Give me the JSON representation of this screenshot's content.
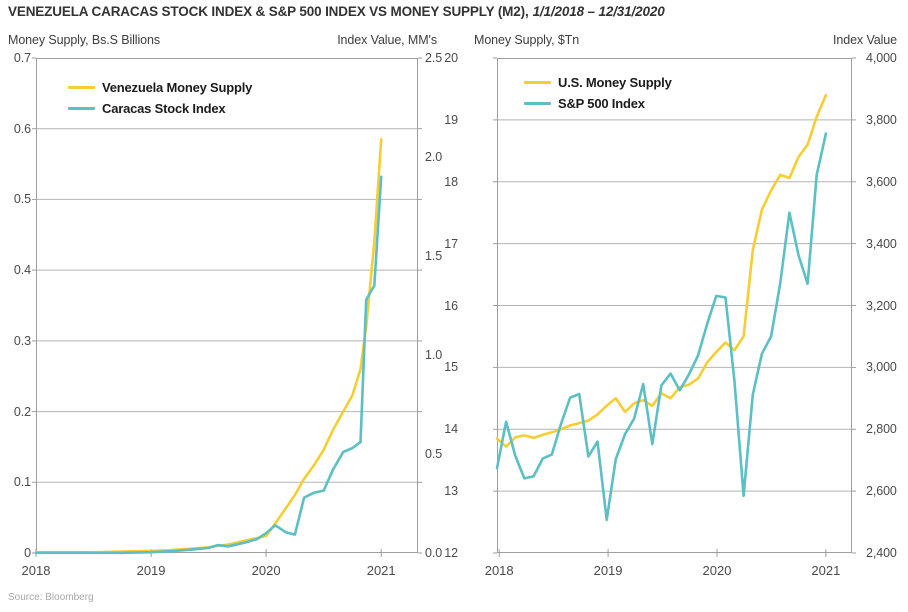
{
  "title": {
    "main": "VENEZUELA CARACAS STOCK INDEX & S&P 500 INDEX VS MONEY SUPPLY (M2),",
    "date_range": "1/1/2018 – 12/31/2020"
  },
  "source": "Source: Bloomberg",
  "colors": {
    "money_supply_yellow": "#F5CE33",
    "index_teal": "#5CBFC4",
    "gridline": "#b4b4b4",
    "frame": "#9e9e9e"
  },
  "chart_data": [
    {
      "type": "line",
      "title": "Venezuela Money Supply vs Caracas Stock Index",
      "left_axis": {
        "title": "Money Supply, Bs.S Billions",
        "min": 0,
        "max": 0.7,
        "tick_labels": [
          "0.7",
          "0.6",
          "0.5",
          "0.4",
          "0.3",
          "0.2",
          "0.1",
          "0"
        ],
        "tick_values": [
          0.7,
          0.6,
          0.5,
          0.4,
          0.3,
          0.2,
          0.1,
          0
        ]
      },
      "right_axis": {
        "title": "Index Value, MM's",
        "min": 0,
        "max": 2.5,
        "tick_labels": [
          "2.5",
          "2.0",
          "1.5",
          "1.0",
          "0.5",
          "0.0"
        ],
        "tick_values": [
          2.5,
          2.0,
          1.5,
          1.0,
          0.5,
          0.0
        ]
      },
      "x_axis": {
        "range": [
          2018.0,
          2021.32
        ],
        "tick_labels": [
          "2018",
          "2019",
          "2020",
          "2021"
        ],
        "tick_values": [
          2018,
          2019,
          2020,
          2021
        ]
      },
      "gridline_values": [
        0.6,
        0.5,
        0.4,
        0.3,
        0.2,
        0.1
      ],
      "x": [
        2018.0,
        2018.25,
        2018.5,
        2018.75,
        2019.0,
        2019.17,
        2019.33,
        2019.5,
        2019.58,
        2019.67,
        2019.75,
        2019.83,
        2019.92,
        2020.0,
        2020.08,
        2020.17,
        2020.25,
        2020.33,
        2020.42,
        2020.5,
        2020.58,
        2020.67,
        2020.75,
        2020.82,
        2020.87,
        2020.94,
        2021.0
      ],
      "series": [
        {
          "name": "Venezuela Money Supply",
          "axis": "left",
          "color": "#F5CE33",
          "values": [
            0.001,
            0.001,
            0.001,
            0.002,
            0.003,
            0.004,
            0.006,
            0.008,
            0.01,
            0.012,
            0.015,
            0.018,
            0.021,
            0.024,
            0.042,
            0.063,
            0.082,
            0.105,
            0.125,
            0.146,
            0.174,
            0.2,
            0.223,
            0.26,
            0.32,
            0.44,
            0.585
          ]
        },
        {
          "name": "Caracas Stock Index",
          "axis": "right",
          "color": "#5CBFC4",
          "values": [
            0.001,
            0.001,
            0.001,
            0.001,
            0.004,
            0.009,
            0.016,
            0.026,
            0.04,
            0.034,
            0.044,
            0.055,
            0.07,
            0.1,
            0.14,
            0.105,
            0.093,
            0.28,
            0.305,
            0.315,
            0.42,
            0.51,
            0.53,
            0.56,
            1.28,
            1.35,
            1.9
          ]
        }
      ]
    },
    {
      "type": "line",
      "title": "U.S. Money Supply vs S&P 500 Index",
      "left_axis": {
        "title": "Money Supply, $Tn",
        "min": 12,
        "max": 20,
        "tick_labels": [
          "20",
          "19",
          "18",
          "17",
          "16",
          "15",
          "14",
          "13",
          "12"
        ],
        "tick_values": [
          20,
          19,
          18,
          17,
          16,
          15,
          14,
          13,
          12
        ]
      },
      "right_axis": {
        "title": "Index Value",
        "min": 2400,
        "max": 4000,
        "tick_labels": [
          "4,000",
          "3,800",
          "3,600",
          "3,400",
          "3,200",
          "3,000",
          "2,800",
          "2,600",
          "2,400"
        ],
        "tick_values": [
          4000,
          3800,
          3600,
          3400,
          3200,
          3000,
          2800,
          2600,
          2400
        ]
      },
      "x_axis": {
        "range": [
          2017.98,
          2021.24
        ],
        "tick_labels": [
          "2018",
          "2019",
          "2020",
          "2021"
        ],
        "tick_values": [
          2018,
          2019,
          2020,
          2021
        ]
      },
      "gridline_values": [
        19,
        18,
        17,
        16,
        15,
        14,
        13
      ],
      "x": [
        2017.98,
        2018.064,
        2018.148,
        2018.232,
        2018.316,
        2018.4,
        2018.483,
        2018.567,
        2018.651,
        2018.735,
        2018.819,
        2018.903,
        2018.987,
        2019.071,
        2019.155,
        2019.239,
        2019.323,
        2019.406,
        2019.49,
        2019.574,
        2019.658,
        2019.742,
        2019.826,
        2019.91,
        2019.994,
        2020.078,
        2020.161,
        2020.245,
        2020.329,
        2020.413,
        2020.497,
        2020.581,
        2020.665,
        2020.749,
        2020.832,
        2020.916,
        2021.0
      ],
      "series": [
        {
          "name": "U.S. Money Supply",
          "axis": "left",
          "color": "#F5CE33",
          "values": [
            13.85,
            13.72,
            13.87,
            13.9,
            13.86,
            13.91,
            13.95,
            14.0,
            14.06,
            14.1,
            14.14,
            14.24,
            14.38,
            14.5,
            14.28,
            14.42,
            14.47,
            14.38,
            14.58,
            14.5,
            14.68,
            14.72,
            14.82,
            15.08,
            15.25,
            15.4,
            15.28,
            15.5,
            16.9,
            17.55,
            17.86,
            18.11,
            18.06,
            18.4,
            18.6,
            19.05,
            19.4
          ]
        },
        {
          "name": "S&P 500 Index",
          "axis": "right",
          "color": "#5CBFC4",
          "values": [
            2674,
            2824,
            2714,
            2641,
            2648,
            2705,
            2718,
            2816,
            2902,
            2914,
            2712,
            2760,
            2507,
            2704,
            2784,
            2834,
            2946,
            2752,
            2942,
            2980,
            2926,
            2977,
            3038,
            3141,
            3231,
            3226,
            2954,
            2585,
            2912,
            3044,
            3100,
            3271,
            3500,
            3363,
            3270,
            3622,
            3756
          ]
        }
      ]
    }
  ]
}
